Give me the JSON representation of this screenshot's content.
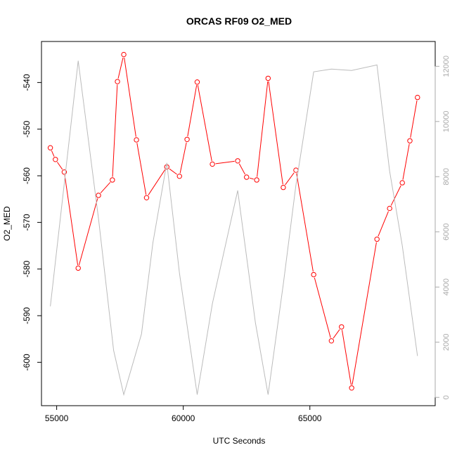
{
  "chart_data": {
    "type": "line",
    "title": "ORCAS RF09 O2_MED",
    "xlabel": "UTC Seconds",
    "ylabel": "O2_MED",
    "xlim": [
      54400,
      69950
    ],
    "ylim": [
      -609.3,
      -531.2
    ],
    "y2lim": [
      -300,
      12900
    ],
    "x_ticks": [
      55000,
      60000,
      65000
    ],
    "y_ticks": [
      -600,
      -590,
      -580,
      -570,
      -560,
      -550,
      -540
    ],
    "y2_ticks": [
      0,
      2000,
      4000,
      6000,
      8000,
      10000,
      12000
    ],
    "grid": false,
    "series": [
      {
        "role": "primary",
        "color": "#ff0000",
        "marker": "open-circle",
        "x": [
          54750,
          54950,
          55300,
          55850,
          56650,
          57200,
          57400,
          57650,
          58150,
          58550,
          59350,
          59850,
          60150,
          60550,
          61150,
          62150,
          62500,
          62900,
          63350,
          63950,
          64450,
          65150,
          65850,
          66250,
          66650,
          67650,
          68150,
          68650,
          68950,
          69250
        ],
        "values": [
          -554,
          -556.5,
          -559.2,
          -579.8,
          -564.2,
          -560.9,
          -539.8,
          -534,
          -552.3,
          -564.7,
          -558.1,
          -560.1,
          -552.2,
          -539.9,
          -557.5,
          -556.8,
          -560.3,
          -560.9,
          -539.1,
          -562.5,
          -558.8,
          -581.2,
          -595.4,
          -592.4,
          -605.5,
          -573.6,
          -567,
          -561.5,
          -552.5,
          -543.2
        ]
      },
      {
        "role": "secondary",
        "color": "#bbbbbb",
        "x": [
          54750,
          55850,
          56650,
          57250,
          57650,
          58350,
          58800,
          59350,
          59850,
          60550,
          61150,
          62150,
          62850,
          63350,
          63950,
          64450,
          65150,
          65850,
          66650,
          67650,
          68150,
          68650,
          69250
        ],
        "values": [
          3300,
          12200,
          6500,
          1700,
          100,
          2300,
          5600,
          8500,
          4500,
          100,
          3400,
          7500,
          2700,
          100,
          4100,
          7700,
          11800,
          11900,
          11850,
          12050,
          8200,
          5500,
          1500
        ]
      }
    ]
  }
}
